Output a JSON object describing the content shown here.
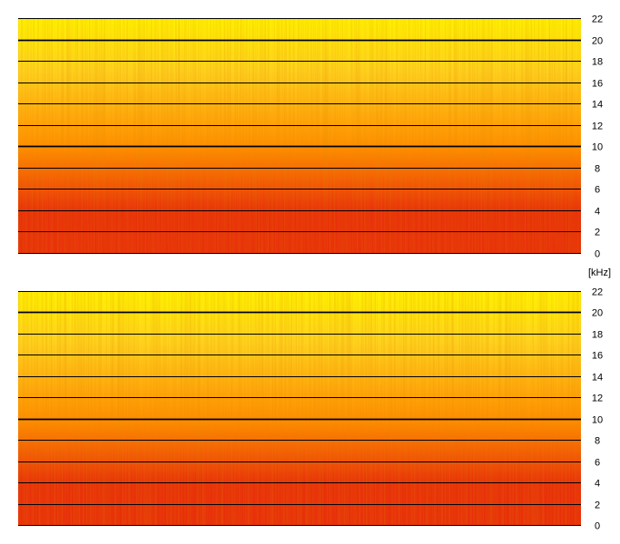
{
  "unit_label": "[kHz]",
  "colors": {
    "low_freq": "#e8300a",
    "mid_freq": "#ff8f00",
    "high_freq": "#ffd21e",
    "top_edge": "#fff200",
    "grid": "#000000",
    "background": "#ffffff"
  },
  "chart_data": [
    {
      "type": "heatmap",
      "panel": "top",
      "ylim": [
        0,
        22
      ],
      "yunit": "kHz",
      "ytick_labels": [
        "0",
        "2",
        "4",
        "6",
        "8",
        "10",
        "12",
        "14",
        "16",
        "18",
        "20",
        "22"
      ],
      "ytick_values": [
        0,
        2,
        4,
        6,
        8,
        10,
        12,
        14,
        16,
        18,
        20,
        22
      ],
      "major_gridlines": [
        10,
        20
      ],
      "grid": true
    },
    {
      "type": "heatmap",
      "panel": "bottom",
      "ylim": [
        0,
        22
      ],
      "yunit": "kHz",
      "ytick_labels": [
        "0",
        "2",
        "4",
        "6",
        "8",
        "10",
        "12",
        "14",
        "16",
        "18",
        "20",
        "22"
      ],
      "ytick_values": [
        0,
        2,
        4,
        6,
        8,
        10,
        12,
        14,
        16,
        18,
        20,
        22
      ],
      "major_gridlines": [
        10,
        20
      ],
      "grid": true
    }
  ]
}
